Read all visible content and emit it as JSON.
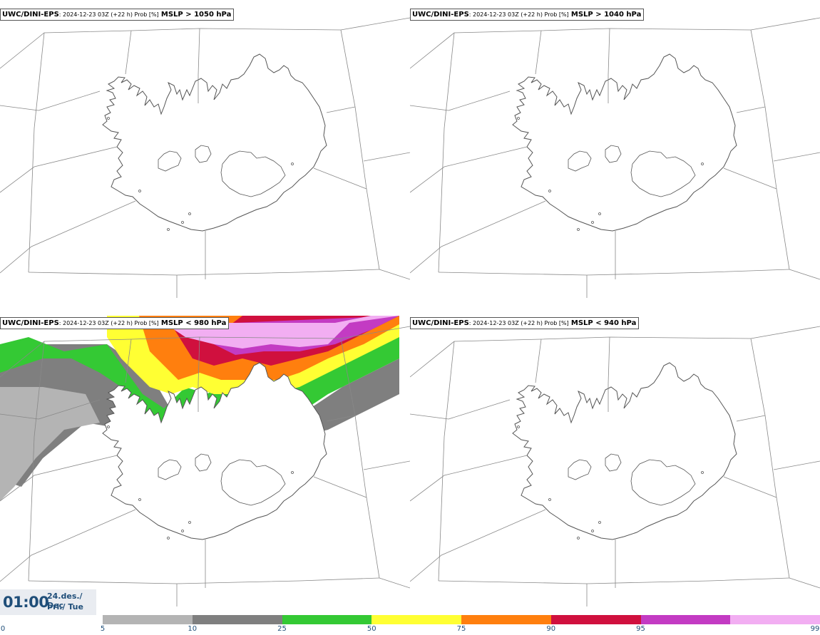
{
  "panels": [
    {
      "model": "UWC/DINI-EPS",
      "meta": ": 2024-12-23 03Z (+22 h) Prob [%]",
      "param": "MSLP > 1050 hPa",
      "has_field": false
    },
    {
      "model": "UWC/DINI-EPS",
      "meta": ": 2024-12-23 03Z (+22 h) Prob [%]",
      "param": "MSLP > 1040 hPa",
      "has_field": false
    },
    {
      "model": "UWC/DINI-EPS",
      "meta": ": 2024-12-23 03Z (+22 h) Prob [%]",
      "param": "MSLP < 980 hPa",
      "has_field": true
    },
    {
      "model": "UWC/DINI-EPS",
      "meta": ": 2024-12-23 03Z (+22 h) Prob [%]",
      "param": "MSLP < 940 hPa",
      "has_field": false
    }
  ],
  "time": {
    "clock": "01:00",
    "date_line1": "24.des./ Dec",
    "date_line2": "Þri./ Tue"
  },
  "legend": {
    "ticks": [
      "0",
      "5",
      "10",
      "25",
      "50",
      "75",
      "90",
      "95",
      "99"
    ],
    "colors": [
      "#b4b4b4",
      "#7f7f7f",
      "#34c934",
      "#ffff33",
      "#ff7f0e",
      "#d0103e",
      "#c33bc3",
      "#f2aef2"
    ]
  },
  "map_colors": {
    "coast": "#555555",
    "grid": "#888888"
  }
}
